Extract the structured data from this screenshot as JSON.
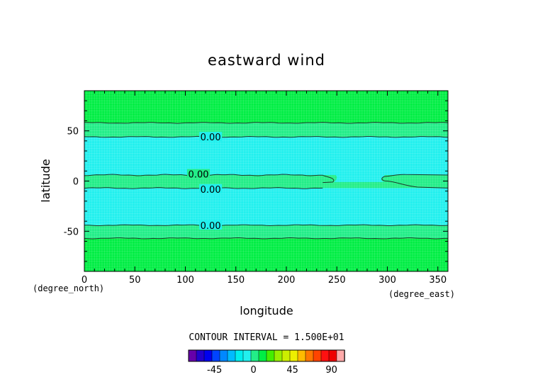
{
  "chart_data": {
    "type": "heatmap",
    "title": "eastward wind",
    "xlabel": "longitude",
    "ylabel": "latitude",
    "x_unit": "(degree_east)",
    "y_unit": "(degree_north)",
    "xlim": [
      0,
      360
    ],
    "ylim": [
      -90,
      90
    ],
    "x_ticks": [
      0,
      50,
      100,
      150,
      200,
      250,
      300,
      350
    ],
    "y_ticks": [
      -50,
      0,
      50
    ],
    "contour_interval_text": "CONTOUR INTERVAL = 1.500E+01",
    "contour_interval": 15,
    "bands": [
      {
        "lat_from": 90,
        "lat_to": 58,
        "level": "15 to 30",
        "color": "#00ee44"
      },
      {
        "lat_from": 58,
        "lat_to": 44,
        "level": "0 to 15",
        "color": "#22ee88"
      },
      {
        "lat_from": 44,
        "lat_to": 6,
        "level": "-15 to 0",
        "color": "#22f0ee"
      },
      {
        "lat_from": 6,
        "lat_to": -7,
        "level": "0 to 15 (interrupted 248-296 E)",
        "color": "#22ee88"
      },
      {
        "lat_from": -7,
        "lat_to": -44,
        "level": "-15 to 0",
        "color": "#22f0ee"
      },
      {
        "lat_from": -44,
        "lat_to": -57,
        "level": "0 to 15",
        "color": "#22ee88"
      },
      {
        "lat_from": -57,
        "lat_to": -90,
        "level": "15 to 30",
        "color": "#00ee44"
      }
    ],
    "contour_labels": [
      {
        "text": "0.00",
        "lon": 125,
        "lat": 44
      },
      {
        "text": "0.00",
        "lon": 113,
        "lat": 7
      },
      {
        "text": "0.00",
        "lon": 125,
        "lat": -8
      },
      {
        "text": "0.00",
        "lon": 125,
        "lat": -44
      }
    ],
    "colorbar": {
      "colors": [
        "#6600aa",
        "#2200cc",
        "#0000ee",
        "#0044ff",
        "#0088ff",
        "#00bbff",
        "#00eeee",
        "#22f0ee",
        "#22ee88",
        "#00ee44",
        "#44ee00",
        "#99ee00",
        "#ccee00",
        "#eeee00",
        "#ffbb00",
        "#ff7700",
        "#ff4400",
        "#ff1111",
        "#ee0000",
        "#ffaaaa"
      ],
      "tick_labels": [
        "-45",
        "0",
        "45",
        "90"
      ],
      "tick_values": [
        -45,
        0,
        45,
        90
      ],
      "vmin": -75,
      "vmax": 105
    }
  }
}
